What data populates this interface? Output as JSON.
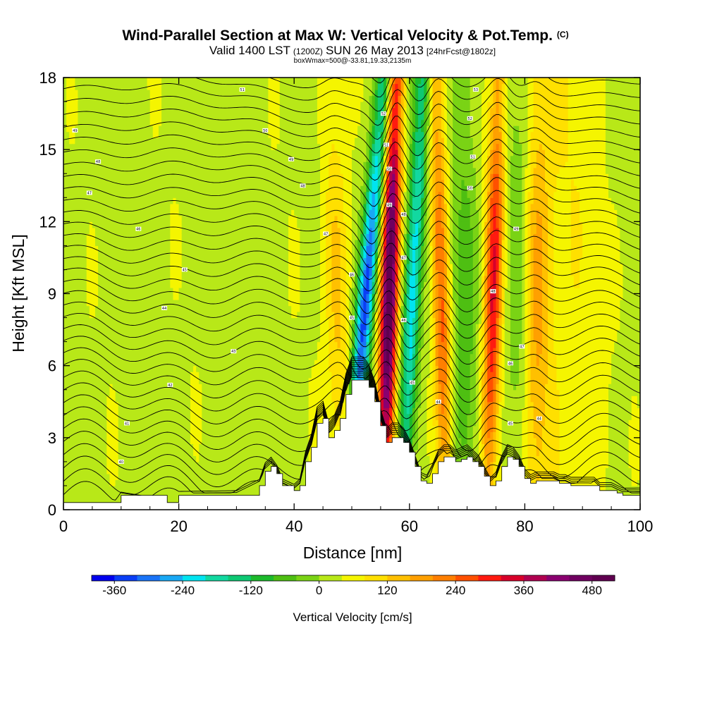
{
  "chart_data": {
    "type": "heatmap",
    "title": "Wind-Parallel Section at Max W: Vertical Velocity & Pot.Temp.",
    "title_mark": "(C)",
    "subtitle_main": "Valid 1400 LST",
    "subtitle_utc": "(1200Z)",
    "subtitle_date": "SUN 26 May 2013",
    "subtitle_forecast": "[24hrFcst@1802z]",
    "info_line": "boxWmax=500@-33.81,19.33,2135m",
    "xlabel": "Distance [nm]",
    "ylabel": "Height [Kft MSL]",
    "xlim": [
      0,
      100
    ],
    "ylim": [
      0,
      18
    ],
    "x_ticks": [
      0,
      20,
      40,
      60,
      80,
      100
    ],
    "y_ticks": [
      0,
      3,
      6,
      9,
      12,
      15,
      18
    ],
    "colorbar": {
      "label": "Vertical Velocity [cm/s]",
      "min": -400,
      "max": 520,
      "step": 40,
      "tick_values": [
        -360,
        -240,
        -120,
        0,
        120,
        240,
        360,
        480
      ],
      "colors": [
        "#0000ee",
        "#0a3ef5",
        "#1a74f7",
        "#19a8f4",
        "#00e4f0",
        "#12d8a0",
        "#0ec873",
        "#1cba2c",
        "#4ebf12",
        "#7ad315",
        "#b8e818",
        "#f5f500",
        "#ffe000",
        "#ffc000",
        "#ffa000",
        "#ff7f00",
        "#ff5000",
        "#ff1a10",
        "#d8002a",
        "#b00050",
        "#8a0070",
        "#700060",
        "#600050"
      ]
    },
    "velocity_features": [
      {
        "kind": "updraft",
        "x_nm": 56.5,
        "peak_cm_s": 500,
        "lean_nm_per_kft": 0.12
      },
      {
        "kind": "downdraft",
        "x_nm": 52.5,
        "peak_cm_s": -360,
        "lean_nm_per_kft": 0.35
      },
      {
        "kind": "downdraft",
        "x_nm": 60.5,
        "peak_cm_s": -260,
        "lean_nm_per_kft": 0.2
      },
      {
        "kind": "updraft",
        "x_nm": 65.5,
        "peak_cm_s": 240,
        "lean_nm_per_kft": -0.1
      },
      {
        "kind": "updraft",
        "x_nm": 74.5,
        "peak_cm_s": 290,
        "lean_nm_per_kft": 0.1
      },
      {
        "kind": "updraft",
        "x_nm": 82,
        "peak_cm_s": 140,
        "lean_nm_per_kft": 0.02
      },
      {
        "kind": "updraft",
        "x_nm": 47.5,
        "peak_cm_s": 110,
        "lean_nm_per_kft": -0.1
      },
      {
        "kind": "downdraft",
        "x_nm": 69.5,
        "peak_cm_s": -90,
        "lean_nm_per_kft": 0
      },
      {
        "kind": "downdraft",
        "x_nm": 79,
        "peak_cm_s": -80,
        "lean_nm_per_kft": 0
      }
    ],
    "terrain_kft": {
      "x_nm": [
        0,
        9,
        10,
        18,
        20,
        30,
        34,
        35,
        36,
        37,
        38,
        40,
        41,
        42,
        43,
        44,
        45,
        46,
        47,
        48,
        49,
        50,
        51,
        52,
        53,
        54,
        55,
        56,
        57,
        58,
        59,
        60,
        61,
        62,
        63,
        64,
        65,
        66,
        67,
        68,
        69,
        70,
        71,
        72,
        73,
        74,
        75,
        76,
        77,
        78,
        79,
        80,
        81,
        82,
        83,
        84,
        85,
        86,
        87,
        88,
        89,
        90,
        91,
        92,
        93,
        94,
        95,
        96,
        97,
        98,
        99,
        100
      ],
      "height": [
        0.3,
        0.3,
        0.6,
        0.3,
        0.6,
        0.6,
        1,
        1.6,
        1.8,
        1.5,
        1,
        0.8,
        1,
        2,
        2.6,
        3.6,
        3.8,
        3,
        3.3,
        3.8,
        4.8,
        5.4,
        5.4,
        5.4,
        5.1,
        4.5,
        3.5,
        2.8,
        3,
        3,
        2.8,
        2.4,
        1.8,
        1.2,
        1.1,
        1.5,
        2,
        2.2,
        2.2,
        2,
        2.1,
        2.2,
        2,
        1.8,
        1.4,
        1,
        1.2,
        1.8,
        2.2,
        2.1,
        1.8,
        1.3,
        1.1,
        1.2,
        1.2,
        1.2,
        1.2,
        1.1,
        1.1,
        1,
        1,
        1,
        1,
        1,
        0.8,
        0.8,
        0.8,
        0.7,
        0.6,
        0.6,
        0.6,
        0.6
      ]
    },
    "pot_temp_labels": [
      {
        "x": 2,
        "y": 15.8,
        "text": "49"
      },
      {
        "x": 6,
        "y": 14.5,
        "text": "48"
      },
      {
        "x": 4.5,
        "y": 13.2,
        "text": "47"
      },
      {
        "x": 13,
        "y": 11.7,
        "text": "46"
      },
      {
        "x": 21,
        "y": 10,
        "text": "45"
      },
      {
        "x": 17.5,
        "y": 8.4,
        "text": "44"
      },
      {
        "x": 29.5,
        "y": 6.6,
        "text": "43"
      },
      {
        "x": 18.5,
        "y": 5.2,
        "text": "42"
      },
      {
        "x": 11,
        "y": 3.6,
        "text": "41"
      },
      {
        "x": 10,
        "y": 2,
        "text": "40"
      },
      {
        "x": 31,
        "y": 17.5,
        "text": "51"
      },
      {
        "x": 35,
        "y": 15.8,
        "text": "50"
      },
      {
        "x": 39.5,
        "y": 14.6,
        "text": "49"
      },
      {
        "x": 41.5,
        "y": 13.5,
        "text": "48"
      },
      {
        "x": 45.5,
        "y": 11.5,
        "text": "47"
      },
      {
        "x": 50,
        "y": 9.8,
        "text": "46"
      },
      {
        "x": 50,
        "y": 8,
        "text": "45"
      },
      {
        "x": 55.5,
        "y": 16.5,
        "text": "52"
      },
      {
        "x": 56,
        "y": 15.2,
        "text": "51"
      },
      {
        "x": 56.5,
        "y": 14.2,
        "text": "50"
      },
      {
        "x": 56.5,
        "y": 12.7,
        "text": "49"
      },
      {
        "x": 59,
        "y": 12.3,
        "text": "48"
      },
      {
        "x": 59,
        "y": 10.5,
        "text": "47"
      },
      {
        "x": 59,
        "y": 7.9,
        "text": "46"
      },
      {
        "x": 60.5,
        "y": 5.3,
        "text": "45"
      },
      {
        "x": 65,
        "y": 4.5,
        "text": "44"
      },
      {
        "x": 71.5,
        "y": 17.5,
        "text": "53"
      },
      {
        "x": 70.5,
        "y": 16.3,
        "text": "52"
      },
      {
        "x": 71,
        "y": 14.7,
        "text": "51"
      },
      {
        "x": 70.5,
        "y": 13.4,
        "text": "50"
      },
      {
        "x": 78.5,
        "y": 11.7,
        "text": "49"
      },
      {
        "x": 74.5,
        "y": 9.1,
        "text": "48"
      },
      {
        "x": 79.5,
        "y": 6.8,
        "text": "47"
      },
      {
        "x": 77.5,
        "y": 6.1,
        "text": "46"
      },
      {
        "x": 77.5,
        "y": 3.6,
        "text": "45"
      },
      {
        "x": 82.5,
        "y": 3.8,
        "text": "44"
      }
    ]
  }
}
